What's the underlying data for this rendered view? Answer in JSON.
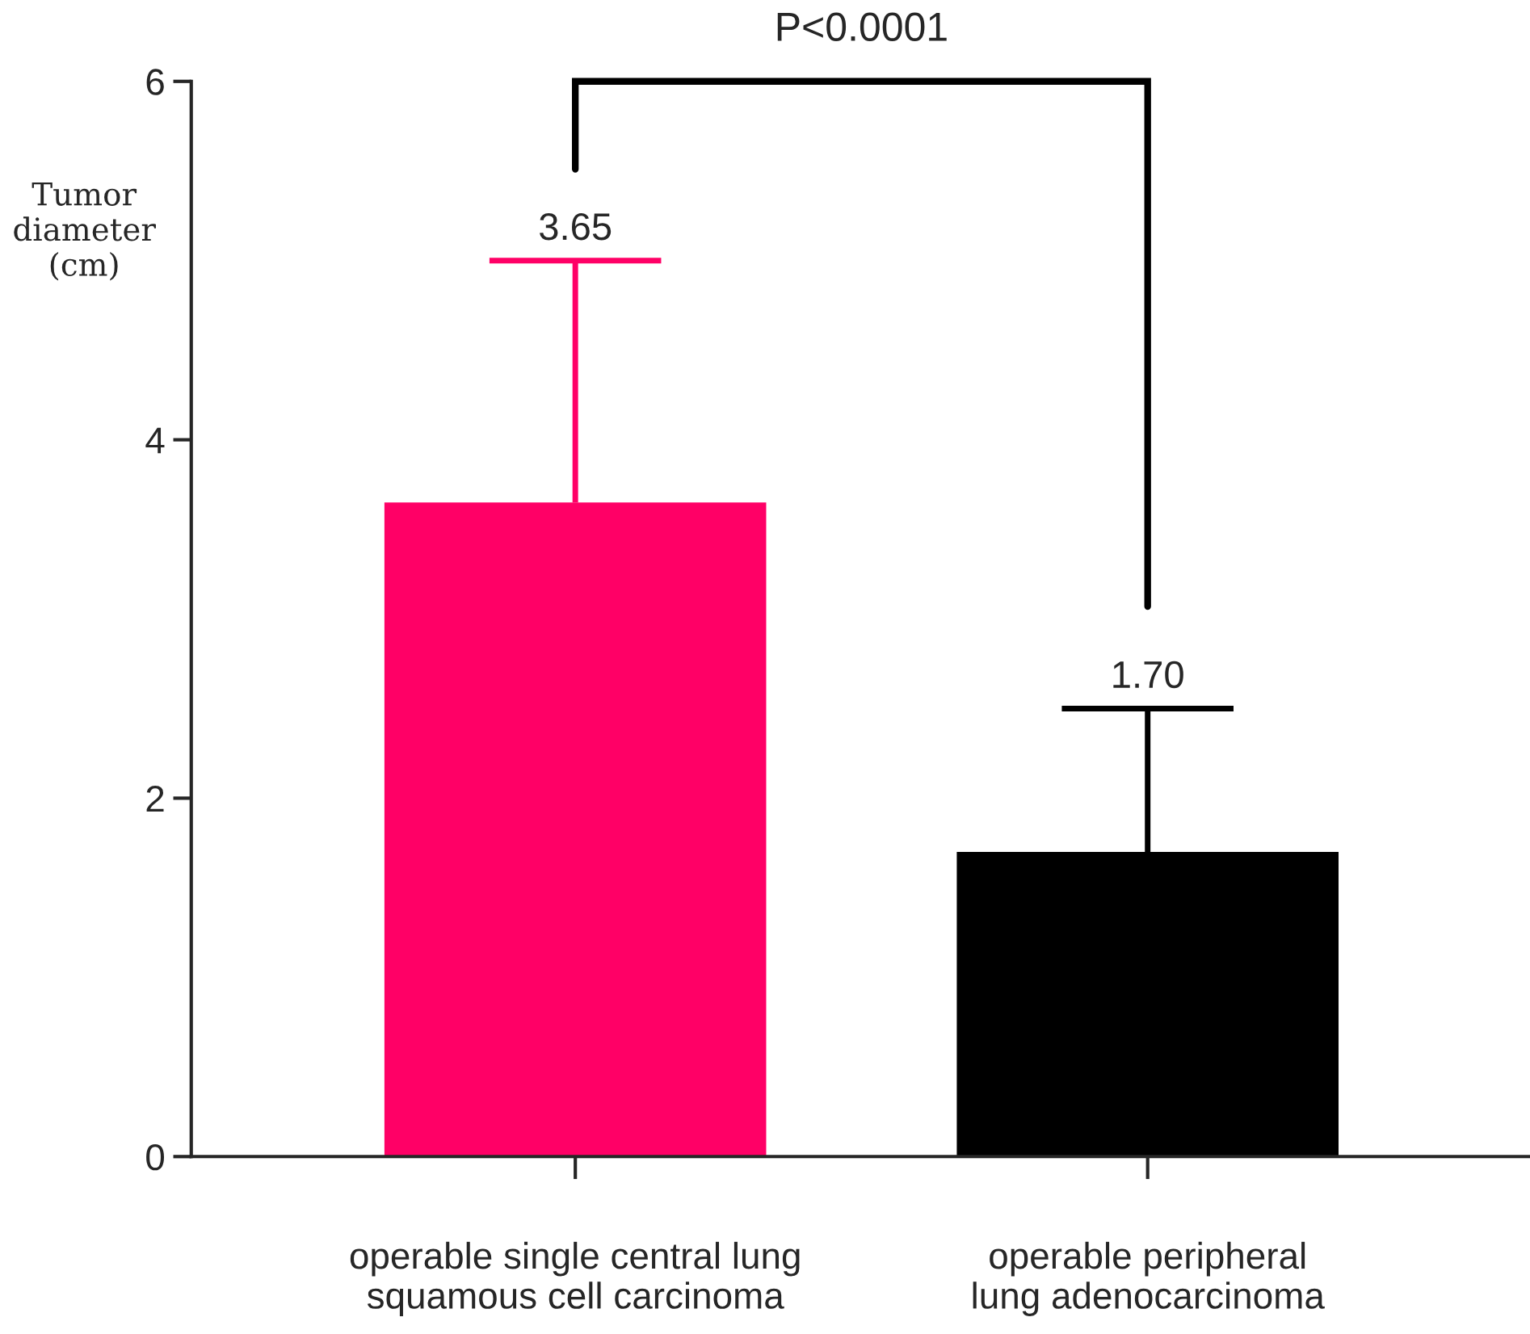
{
  "chart_data": {
    "type": "bar",
    "ylabel": "Tumor\ndiameter\n(cm)",
    "categories": [
      "operable single central lung\nsquamous cell carcinoma",
      "operable peripheral\nlung adenocarcinoma"
    ],
    "values": [
      3.65,
      1.7
    ],
    "colors": [
      "#ff0066",
      "#000000"
    ],
    "errors": [
      [
        3.65,
        5.0
      ],
      [
        1.7,
        2.5
      ]
    ],
    "ylim": [
      0,
      6
    ],
    "yticks": [
      0,
      2,
      4,
      6
    ],
    "annotations": [
      "P<0.0001",
      {
        "text": "3.65",
        "x": "operable single central lung\nsquamous cell carcinoma",
        "y": 5.0
      },
      {
        "text": "1.70",
        "x": "operable peripheral\nlung adenocarcinoma",
        "y": 2.5
      }
    ],
    "grid": false,
    "legend": false
  }
}
